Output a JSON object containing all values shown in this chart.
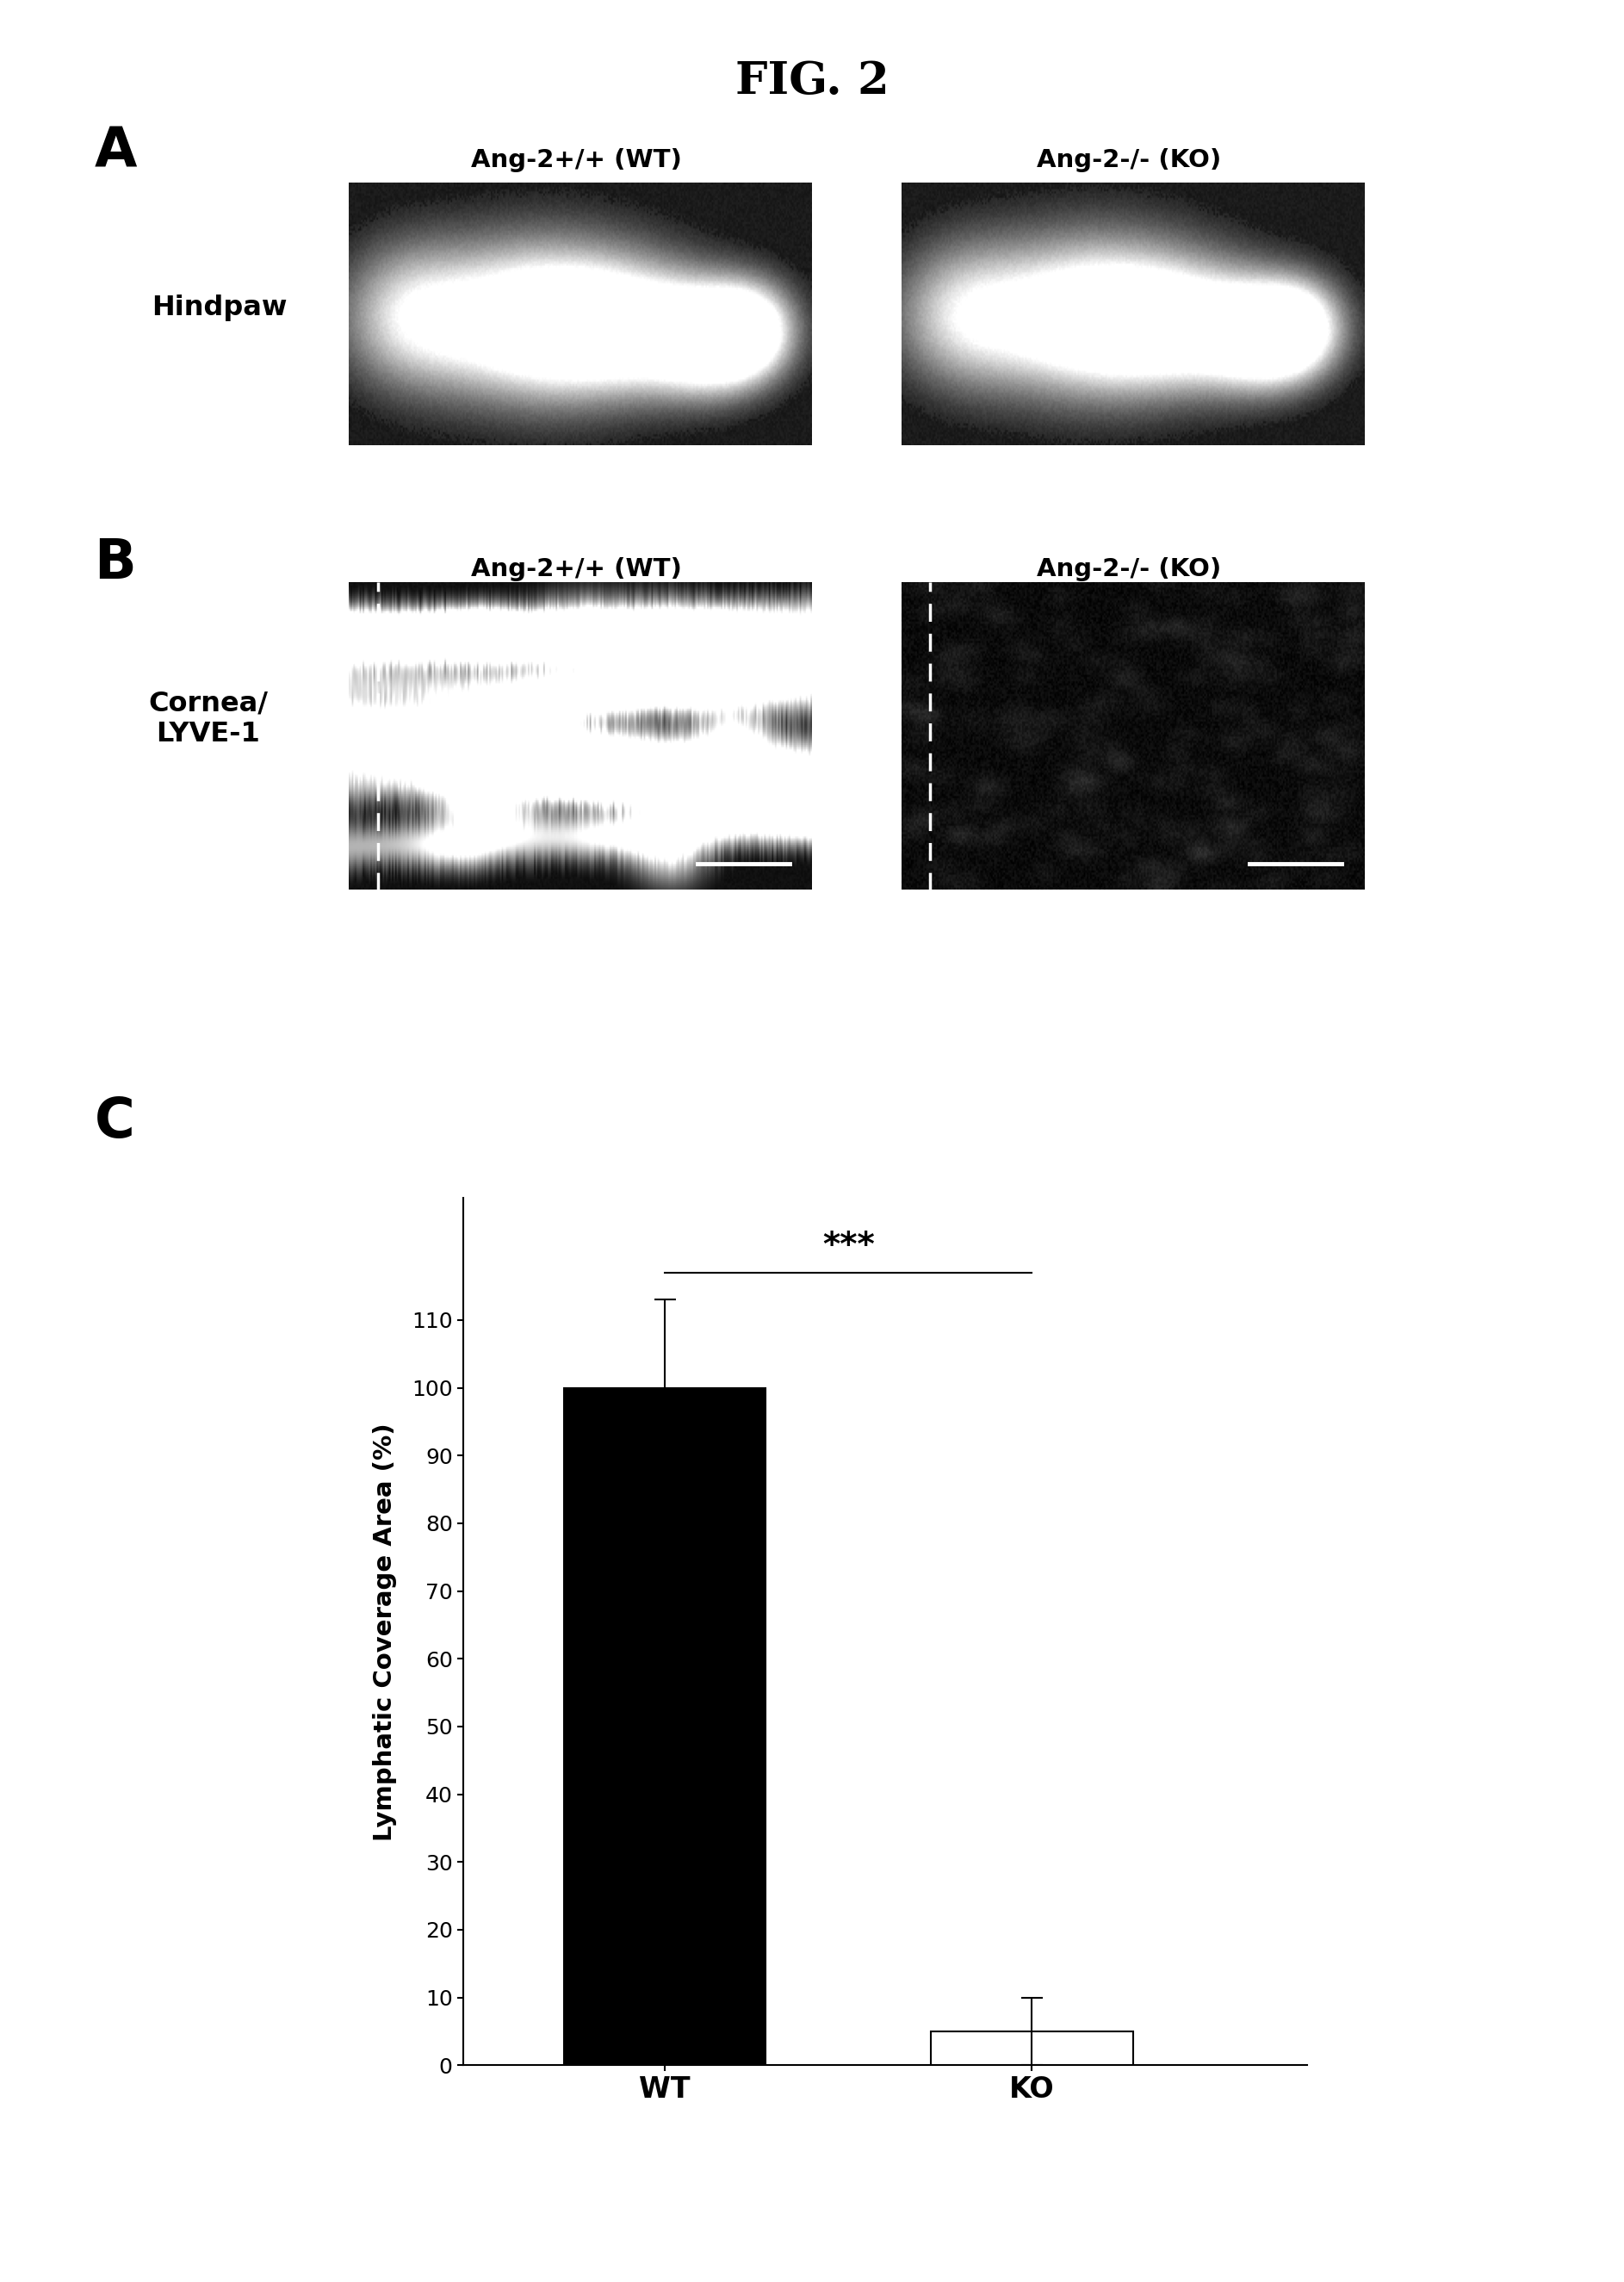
{
  "title": "FIG. 2",
  "panel_A_label": "A",
  "panel_B_label": "B",
  "panel_C_label": "C",
  "hindpaw_label": "Hindpaw",
  "cornea_label": "Cornea/\nLYVE-1",
  "wt_label": "Ang-2+/+ (WT)",
  "ko_label": "Ang-2-/- (KO)",
  "bar_categories": [
    "WT",
    "KO"
  ],
  "bar_values": [
    100,
    5
  ],
  "bar_errors": [
    13,
    5
  ],
  "bar_colors": [
    "#000000",
    "#ffffff"
  ],
  "bar_edge_colors": [
    "#000000",
    "#000000"
  ],
  "ylabel": "Lymphatic Coverage Area (%)",
  "yticks": [
    0,
    10,
    20,
    30,
    40,
    50,
    60,
    70,
    80,
    90,
    100,
    110
  ],
  "significance_text": "***",
  "background_color": "#ffffff",
  "fig_width": 18.86,
  "fig_height": 26.5
}
